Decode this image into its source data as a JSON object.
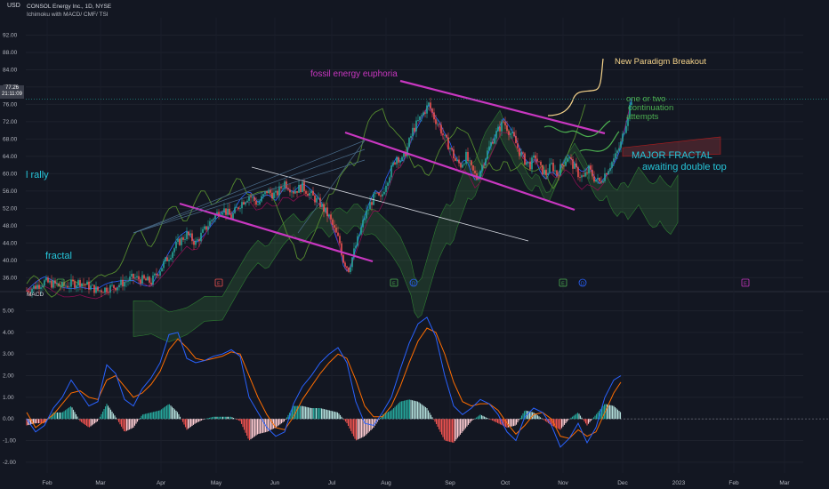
{
  "header": {
    "currency": "USD",
    "title": "CONSOL Energy Inc., 1D, NYSE",
    "indicators": "Ichimoku with MACD/ CMF/ TSI",
    "macd_label": "MACD"
  },
  "price_tag": {
    "value": "77.26",
    "countdown": "21:11:09"
  },
  "colors": {
    "background": "#131722",
    "up": "#26a69a",
    "down": "#ef5350",
    "magenta": "#c837c0",
    "yellow": "#f5d38a",
    "green": "#4caf50",
    "macd_line": "#2962ff",
    "signal_line": "#ff6d00",
    "cyan": "#26c6da"
  },
  "annotations": {
    "rally": "l rally",
    "fractal": "fractal",
    "fossil": "fossil energy euphoria",
    "paradigm": "New Paradigm Breakout",
    "continuation": [
      "one or two",
      "continuation",
      "attempts"
    ],
    "major": "MAJOR FRACTAL",
    "double_top": "awaiting double top"
  },
  "event_markers": [
    "D",
    "E",
    "E",
    "D",
    "E",
    "D",
    "E"
  ],
  "chart_data": [
    {
      "type": "candlestick",
      "title": "CONSOL Energy Inc., 1D, NYSE",
      "ylabel": "USD",
      "ylim": [
        34,
        96
      ],
      "y_ticks": [
        92.0,
        88.0,
        84.0,
        80.0,
        76.0,
        72.0,
        68.0,
        64.0,
        60.0,
        56.0,
        52.0,
        48.0,
        44.0,
        40.0,
        36.0
      ],
      "x_ticks": [
        "Feb",
        "Mar",
        "Apr",
        "May",
        "Jun",
        "Jul",
        "Aug",
        "Sep",
        "Oct",
        "Nov",
        "Dec",
        "2023",
        "Feb",
        "Mar"
      ],
      "last_price": 77.26,
      "path": [
        [
          0,
          33
        ],
        [
          10,
          35
        ],
        [
          20,
          34
        ],
        [
          30,
          35
        ],
        [
          40,
          33
        ],
        [
          50,
          34
        ],
        [
          60,
          36
        ],
        [
          70,
          35
        ],
        [
          75,
          38
        ],
        [
          80,
          41
        ],
        [
          85,
          44
        ],
        [
          90,
          46
        ],
        [
          95,
          44
        ],
        [
          100,
          47
        ],
        [
          105,
          50
        ],
        [
          110,
          52
        ],
        [
          115,
          50
        ],
        [
          120,
          53
        ],
        [
          125,
          55
        ],
        [
          130,
          53
        ],
        [
          135,
          56
        ],
        [
          140,
          55
        ],
        [
          145,
          58
        ],
        [
          150,
          56
        ],
        [
          155,
          57
        ],
        [
          160,
          55
        ],
        [
          165,
          53
        ],
        [
          170,
          50
        ],
        [
          173,
          47
        ],
        [
          176,
          44
        ],
        [
          178,
          40
        ],
        [
          181,
          38
        ],
        [
          184,
          42
        ],
        [
          187,
          46
        ],
        [
          190,
          50
        ],
        [
          193,
          53
        ],
        [
          196,
          55
        ],
        [
          199,
          54
        ],
        [
          202,
          58
        ],
        [
          205,
          61
        ],
        [
          208,
          64
        ],
        [
          211,
          63
        ],
        [
          214,
          66
        ],
        [
          217,
          70
        ],
        [
          220,
          72
        ],
        [
          223,
          74
        ],
        [
          226,
          76
        ],
        [
          229,
          73
        ],
        [
          232,
          71
        ],
        [
          235,
          68
        ],
        [
          238,
          66
        ],
        [
          241,
          63
        ],
        [
          244,
          62
        ],
        [
          247,
          64
        ],
        [
          250,
          61
        ],
        [
          253,
          59
        ],
        [
          256,
          62
        ],
        [
          259,
          65
        ],
        [
          262,
          68
        ],
        [
          265,
          70
        ],
        [
          268,
          72
        ],
        [
          271,
          70
        ],
        [
          274,
          68
        ],
        [
          277,
          65
        ],
        [
          280,
          63
        ],
        [
          283,
          62
        ],
        [
          286,
          64
        ],
        [
          289,
          61
        ],
        [
          292,
          60
        ],
        [
          295,
          62
        ],
        [
          298,
          60
        ],
        [
          301,
          62
        ],
        [
          304,
          64
        ],
        [
          307,
          62
        ],
        [
          310,
          60
        ],
        [
          313,
          59
        ],
        [
          316,
          61
        ],
        [
          319,
          59
        ],
        [
          322,
          58
        ],
        [
          325,
          60
        ],
        [
          328,
          62
        ],
        [
          331,
          64
        ],
        [
          334,
          67
        ],
        [
          337,
          72
        ],
        [
          340,
          77.26
        ]
      ]
    },
    {
      "type": "macd",
      "ylim": [
        -2.5,
        5.6
      ],
      "y_ticks": [
        5.0,
        4.0,
        3.0,
        2.0,
        1.0,
        0.0,
        -1.0,
        -2.0
      ],
      "macd_line": [
        [
          0,
          0.0
        ],
        [
          10,
          -0.6
        ],
        [
          20,
          -0.3
        ],
        [
          30,
          0.5
        ],
        [
          40,
          1.0
        ],
        [
          50,
          1.8
        ],
        [
          60,
          1.2
        ],
        [
          70,
          0.6
        ],
        [
          80,
          0.8
        ],
        [
          90,
          2.5
        ],
        [
          100,
          2.1
        ],
        [
          110,
          0.9
        ],
        [
          120,
          0.6
        ],
        [
          130,
          1.4
        ],
        [
          140,
          1.9
        ],
        [
          150,
          2.6
        ],
        [
          160,
          3.9
        ],
        [
          170,
          4.0
        ],
        [
          180,
          2.8
        ],
        [
          190,
          2.6
        ],
        [
          200,
          2.7
        ],
        [
          210,
          2.9
        ],
        [
          220,
          3.0
        ],
        [
          230,
          3.2
        ],
        [
          240,
          2.9
        ],
        [
          250,
          1.0
        ],
        [
          260,
          0.3
        ],
        [
          270,
          -0.4
        ],
        [
          280,
          -0.8
        ],
        [
          290,
          -0.6
        ],
        [
          300,
          0.7
        ],
        [
          310,
          1.5
        ],
        [
          320,
          2.0
        ],
        [
          330,
          2.6
        ],
        [
          340,
          3.0
        ],
        [
          350,
          3.3
        ],
        [
          360,
          2.6
        ],
        [
          370,
          0.8
        ],
        [
          380,
          -0.2
        ],
        [
          390,
          -0.3
        ],
        [
          400,
          0.3
        ],
        [
          410,
          1.0
        ],
        [
          420,
          2.3
        ],
        [
          430,
          3.5
        ],
        [
          440,
          4.4
        ],
        [
          450,
          4.7
        ],
        [
          460,
          3.8
        ],
        [
          470,
          2.0
        ],
        [
          480,
          0.6
        ],
        [
          490,
          0.2
        ],
        [
          500,
          0.5
        ],
        [
          510,
          0.9
        ],
        [
          520,
          0.7
        ],
        [
          530,
          0.2
        ],
        [
          540,
          -0.6
        ],
        [
          550,
          -1.0
        ],
        [
          560,
          0.1
        ],
        [
          570,
          0.5
        ],
        [
          580,
          0.3
        ],
        [
          590,
          -0.3
        ],
        [
          600,
          -1.3
        ],
        [
          610,
          -0.9
        ],
        [
          620,
          -0.2
        ],
        [
          630,
          -1.1
        ],
        [
          640,
          -0.4
        ],
        [
          650,
          1.0
        ],
        [
          660,
          1.8
        ],
        [
          668,
          2.0
        ]
      ],
      "signal_line": [
        [
          0,
          0.3
        ],
        [
          10,
          -0.4
        ],
        [
          20,
          -0.1
        ],
        [
          30,
          0.2
        ],
        [
          40,
          0.7
        ],
        [
          50,
          1.2
        ],
        [
          60,
          1.3
        ],
        [
          70,
          1.0
        ],
        [
          80,
          0.9
        ],
        [
          90,
          1.8
        ],
        [
          100,
          2.0
        ],
        [
          110,
          1.5
        ],
        [
          120,
          1.0
        ],
        [
          130,
          1.2
        ],
        [
          140,
          1.6
        ],
        [
          150,
          2.2
        ],
        [
          160,
          3.2
        ],
        [
          170,
          3.7
        ],
        [
          180,
          3.3
        ],
        [
          190,
          2.8
        ],
        [
          200,
          2.7
        ],
        [
          210,
          2.8
        ],
        [
          220,
          2.9
        ],
        [
          230,
          3.1
        ],
        [
          240,
          3.0
        ],
        [
          250,
          2.0
        ],
        [
          260,
          1.0
        ],
        [
          270,
          0.2
        ],
        [
          280,
          -0.4
        ],
        [
          290,
          -0.5
        ],
        [
          300,
          0.1
        ],
        [
          310,
          0.9
        ],
        [
          320,
          1.5
        ],
        [
          330,
          2.1
        ],
        [
          340,
          2.6
        ],
        [
          350,
          3.0
        ],
        [
          360,
          2.8
        ],
        [
          370,
          1.8
        ],
        [
          380,
          0.6
        ],
        [
          390,
          0.1
        ],
        [
          400,
          0.1
        ],
        [
          410,
          0.6
        ],
        [
          420,
          1.5
        ],
        [
          430,
          2.6
        ],
        [
          440,
          3.6
        ],
        [
          450,
          4.2
        ],
        [
          460,
          4.0
        ],
        [
          470,
          3.0
        ],
        [
          480,
          1.7
        ],
        [
          490,
          0.8
        ],
        [
          500,
          0.6
        ],
        [
          510,
          0.7
        ],
        [
          520,
          0.7
        ],
        [
          530,
          0.4
        ],
        [
          540,
          -0.2
        ],
        [
          550,
          -0.7
        ],
        [
          560,
          -0.3
        ],
        [
          570,
          0.2
        ],
        [
          580,
          0.3
        ],
        [
          590,
          0.0
        ],
        [
          600,
          -0.8
        ],
        [
          610,
          -0.9
        ],
        [
          620,
          -0.5
        ],
        [
          630,
          -0.8
        ],
        [
          640,
          -0.6
        ],
        [
          650,
          0.3
        ],
        [
          660,
          1.2
        ],
        [
          668,
          1.7
        ]
      ]
    }
  ]
}
